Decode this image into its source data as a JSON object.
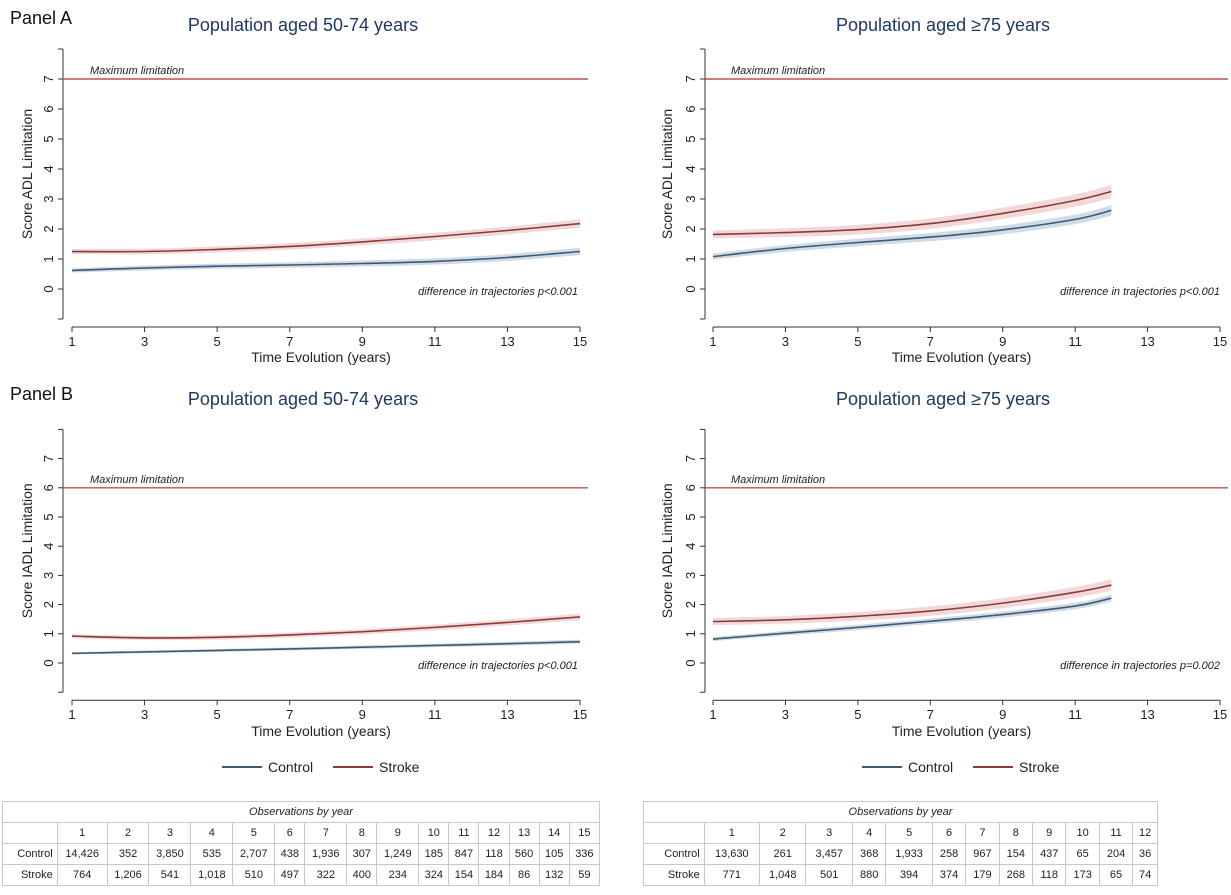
{
  "panel_labels": [
    "Panel A",
    "Panel B"
  ],
  "colors": {
    "control": "#3d5a73",
    "stroke": "#8b3a3a",
    "reference": "#c0504d",
    "control_band": "#a9bdd6",
    "stroke_band": "#e8b9b9"
  },
  "legend": {
    "control": "Control",
    "stroke": "Stroke"
  },
  "chart_data": [
    {
      "type": "line",
      "panel": "Panel A",
      "title": "Population aged 50-74 years",
      "xlabel": "Time Evolution (years)",
      "ylabel": "Score ADL Limitation",
      "xlim": [
        1,
        15
      ],
      "ylim": [
        -1,
        8
      ],
      "x_ticks": [
        1,
        3,
        5,
        7,
        9,
        11,
        13,
        15
      ],
      "y_ticks": [
        0,
        1,
        2,
        3,
        4,
        5,
        6,
        7
      ],
      "reference_line": {
        "y": 7,
        "label": "Maximum limitation"
      },
      "annotation": "difference in trajectories p<0.001",
      "series": [
        {
          "name": "Control",
          "x": [
            1,
            3,
            5,
            7,
            9,
            11,
            13,
            15
          ],
          "y": [
            0.62,
            0.7,
            0.76,
            0.8,
            0.85,
            0.92,
            1.05,
            1.25
          ],
          "band": 0.12
        },
        {
          "name": "Stroke",
          "x": [
            1,
            3,
            5,
            7,
            9,
            11,
            13,
            15
          ],
          "y": [
            1.25,
            1.25,
            1.32,
            1.42,
            1.57,
            1.75,
            1.95,
            2.18
          ],
          "band": 0.14
        }
      ]
    },
    {
      "type": "line",
      "panel": "Panel A",
      "title": "Population aged ≥75 years",
      "xlabel": "Time Evolution (years)",
      "ylabel": "Score ADL Limitation",
      "xlim": [
        1,
        15
      ],
      "ylim": [
        -1,
        8
      ],
      "x_ticks": [
        1,
        3,
        5,
        7,
        9,
        11,
        13,
        15
      ],
      "y_ticks": [
        0,
        1,
        2,
        3,
        4,
        5,
        6,
        7
      ],
      "reference_line": {
        "y": 7,
        "label": "Maximum limitation"
      },
      "annotation": "difference in trajectories p<0.001",
      "series": [
        {
          "name": "Control",
          "x": [
            1,
            3,
            5,
            7,
            9,
            11,
            12
          ],
          "y": [
            1.08,
            1.35,
            1.55,
            1.73,
            1.97,
            2.32,
            2.62
          ],
          "band": 0.17
        },
        {
          "name": "Stroke",
          "x": [
            1,
            3,
            5,
            7,
            9,
            11,
            12
          ],
          "y": [
            1.82,
            1.88,
            1.98,
            2.18,
            2.52,
            2.95,
            3.25
          ],
          "band": 0.22
        }
      ]
    },
    {
      "type": "line",
      "panel": "Panel B",
      "title": "Population aged 50-74 years",
      "xlabel": "Time Evolution (years)",
      "ylabel": "Score IADL Limitation",
      "xlim": [
        1,
        15
      ],
      "ylim": [
        -1,
        8
      ],
      "x_ticks": [
        1,
        3,
        5,
        7,
        9,
        11,
        13,
        15
      ],
      "y_ticks": [
        0,
        1,
        2,
        3,
        4,
        5,
        6,
        7
      ],
      "reference_line": {
        "y": 6,
        "label": "Maximum limitation"
      },
      "annotation": "difference in trajectories p<0.001",
      "series": [
        {
          "name": "Control",
          "x": [
            1,
            3,
            5,
            7,
            9,
            11,
            13,
            15
          ],
          "y": [
            0.33,
            0.38,
            0.43,
            0.48,
            0.54,
            0.6,
            0.66,
            0.73
          ],
          "band": 0.07
        },
        {
          "name": "Stroke",
          "x": [
            1,
            3,
            5,
            7,
            9,
            11,
            13,
            15
          ],
          "y": [
            0.92,
            0.86,
            0.88,
            0.96,
            1.07,
            1.22,
            1.39,
            1.58
          ],
          "band": 0.11
        }
      ]
    },
    {
      "type": "line",
      "panel": "Panel B",
      "title": "Population aged ≥75 years",
      "xlabel": "Time Evolution (years)",
      "ylabel": "Score IADL Limitation",
      "xlim": [
        1,
        15
      ],
      "ylim": [
        -1,
        8
      ],
      "x_ticks": [
        1,
        3,
        5,
        7,
        9,
        11,
        13,
        15
      ],
      "y_ticks": [
        0,
        1,
        2,
        3,
        4,
        5,
        6,
        7
      ],
      "reference_line": {
        "y": 6,
        "label": "Maximum limitation"
      },
      "annotation": "difference in trajectories p=0.002",
      "series": [
        {
          "name": "Control",
          "x": [
            1,
            3,
            5,
            7,
            9,
            11,
            12
          ],
          "y": [
            0.82,
            1.02,
            1.22,
            1.43,
            1.66,
            1.95,
            2.22
          ],
          "band": 0.12
        },
        {
          "name": "Stroke",
          "x": [
            1,
            3,
            5,
            7,
            9,
            11,
            12
          ],
          "y": [
            1.42,
            1.48,
            1.6,
            1.78,
            2.05,
            2.42,
            2.67
          ],
          "band": 0.2
        }
      ]
    }
  ],
  "tables": [
    {
      "caption": "Observations by year",
      "years": [
        "1",
        "2",
        "3",
        "4",
        "5",
        "6",
        "7",
        "8",
        "9",
        "10",
        "11",
        "12",
        "13",
        "14",
        "15"
      ],
      "rows": [
        {
          "label": "Control",
          "values": [
            "14,426",
            "352",
            "3,850",
            "535",
            "2,707",
            "438",
            "1,936",
            "307",
            "1,249",
            "185",
            "847",
            "118",
            "560",
            "105",
            "336"
          ]
        },
        {
          "label": "Stroke",
          "values": [
            "764",
            "1,206",
            "541",
            "1,018",
            "510",
            "497",
            "322",
            "400",
            "234",
            "324",
            "154",
            "184",
            "86",
            "132",
            "59"
          ]
        }
      ]
    },
    {
      "caption": "Observations by year",
      "years": [
        "1",
        "2",
        "3",
        "4",
        "5",
        "6",
        "7",
        "8",
        "9",
        "10",
        "11",
        "12"
      ],
      "rows": [
        {
          "label": "Control",
          "values": [
            "13,630",
            "261",
            "3,457",
            "368",
            "1,933",
            "258",
            "967",
            "154",
            "437",
            "65",
            "204",
            "36"
          ]
        },
        {
          "label": "Stroke",
          "values": [
            "771",
            "1,048",
            "501",
            "880",
            "394",
            "374",
            "179",
            "268",
            "118",
            "173",
            "65",
            "74"
          ]
        }
      ]
    }
  ]
}
